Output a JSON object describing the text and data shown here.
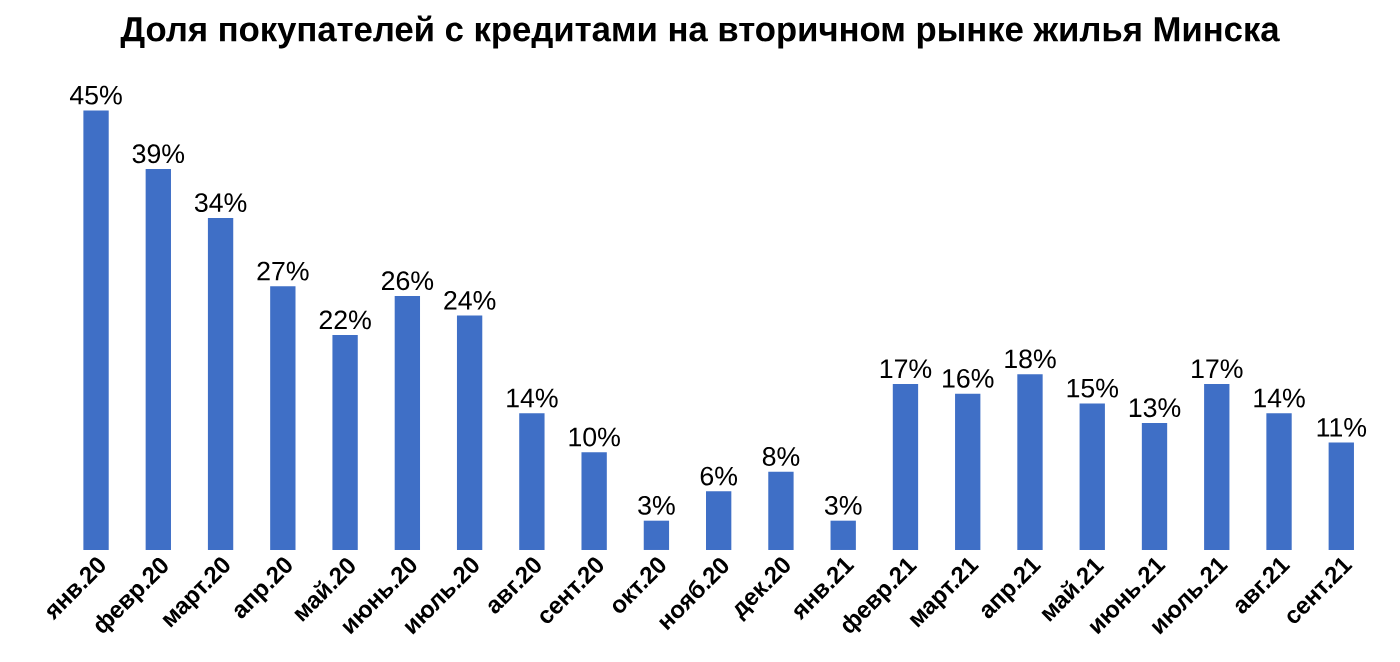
{
  "chart_data": {
    "type": "bar",
    "title": "Доля покупателей с кредитами на вторичном рынке жилья Минска",
    "categories": [
      "янв.20",
      "февр.20",
      "март.20",
      "апр.20",
      "май.20",
      "июнь.20",
      "июль.20",
      "авг.20",
      "сент.20",
      "окт.20",
      "нояб.20",
      "дек.20",
      "янв.21",
      "февр.21",
      "март.21",
      "апр.21",
      "май.21",
      "июнь.21",
      "июль.21",
      "авг.21",
      "сент.21"
    ],
    "values": [
      45,
      39,
      34,
      27,
      22,
      26,
      24,
      14,
      10,
      3,
      6,
      8,
      3,
      17,
      16,
      18,
      15,
      13,
      17,
      14,
      11
    ],
    "value_labels": [
      "45%",
      "39%",
      "34%",
      "27%",
      "22%",
      "26%",
      "24%",
      "14%",
      "10%",
      "3%",
      "6%",
      "8%",
      "3%",
      "17%",
      "16%",
      "18%",
      "15%",
      "13%",
      "17%",
      "14%",
      "11%"
    ],
    "color": "#3f6fc6"
  }
}
